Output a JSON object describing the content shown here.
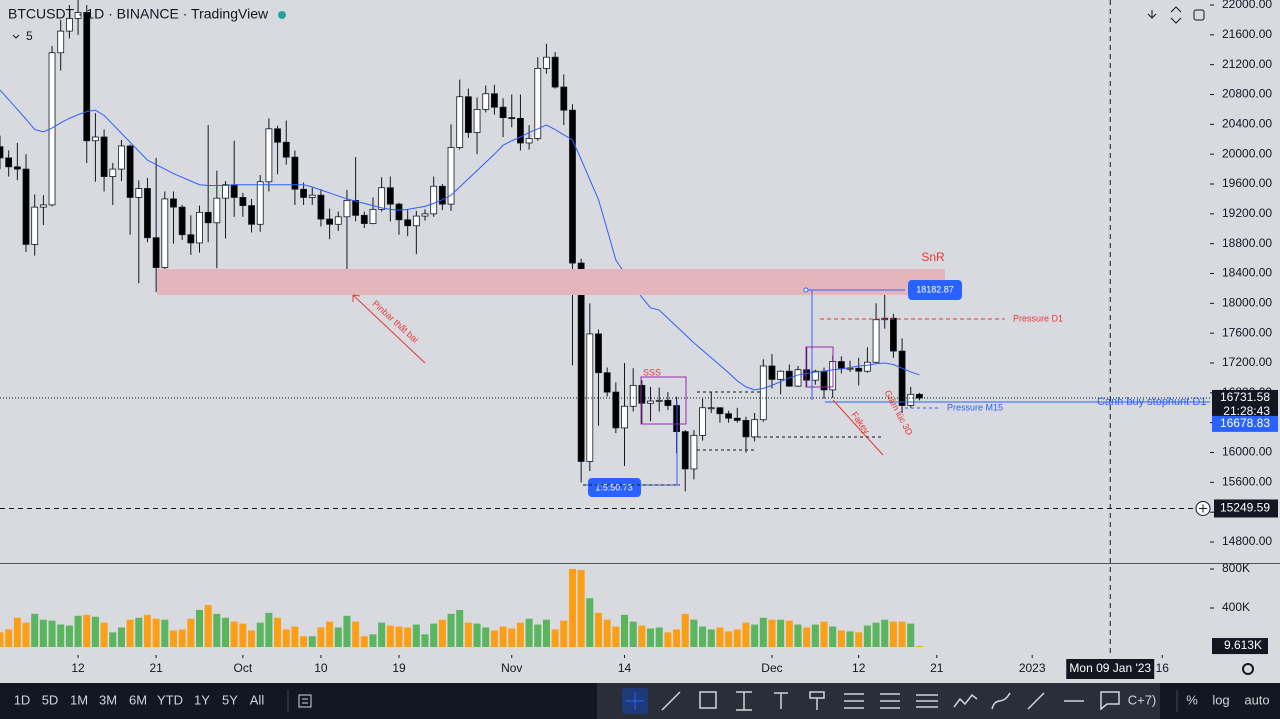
{
  "header": {
    "title": "BTCUSDT · 1D · BINANCE · TradingView",
    "indicator_count": "5"
  },
  "chart_data": {
    "type": "candlestick",
    "open": [
      20100,
      19950,
      19830,
      19800,
      18790,
      19290,
      19320,
      21360,
      21650,
      21820,
      21900,
      20180,
      20230,
      19700,
      19800,
      20110,
      19420,
      19540,
      18880,
      18480,
      19400,
      19290,
      18920,
      18810,
      19220,
      19080,
      19410,
      19590,
      19420,
      19310,
      19060,
      19630,
      20340,
      20160,
      19960,
      19530,
      19420,
      19450,
      19130,
      19060,
      19160,
      19380,
      19180,
      19070,
      19260,
      19550,
      19330,
      19120,
      19040,
      19170,
      19200,
      19570,
      19330,
      20090,
      20770,
      20290,
      20600,
      20810,
      20630,
      20490,
      20480,
      20150,
      20210,
      21150,
      21300,
      20900,
      20590,
      18540,
      15880,
      17590,
      17070,
      16810,
      16330,
      16620,
      16900,
      16660,
      16690,
      16700,
      16630,
      16280,
      15780,
      16230,
      16600,
      16600,
      16520,
      16460,
      16430,
      16210,
      16440,
      17160,
      16980,
      17090,
      16890,
      17110,
      16970,
      17090,
      16840,
      17220,
      17130,
      17130,
      17090,
      17210,
      17780,
      17800,
      17360,
      16630,
      16780
    ],
    "high": [
      20250,
      20050,
      20150,
      20000,
      19460,
      19450,
      21450,
      21800,
      22000,
      22100,
      22000,
      20550,
      20330,
      19880,
      20190,
      20130,
      19650,
      19680,
      19950,
      19500,
      19500,
      19320,
      19180,
      19310,
      20390,
      19780,
      19640,
      20180,
      19480,
      19400,
      19720,
      20480,
      20380,
      20450,
      20050,
      19620,
      19550,
      19530,
      19270,
      19230,
      19520,
      19960,
      19230,
      19420,
      19690,
      19700,
      19350,
      19260,
      19240,
      19260,
      19700,
      19600,
      20400,
      21000,
      20880,
      20760,
      20920,
      20930,
      20750,
      20800,
      20800,
      20390,
      21300,
      21480,
      21370,
      21070,
      20670,
      18600,
      18000,
      17650,
      17140,
      16940,
      17200,
      17130,
      16970,
      16880,
      16870,
      16810,
      16750,
      16300,
      16300,
      16720,
      16810,
      16610,
      16560,
      16600,
      16480,
      16530,
      17250,
      17320,
      17100,
      17180,
      17160,
      17420,
      17110,
      17140,
      17300,
      17290,
      17230,
      17270,
      17410,
      18000,
      18390,
      17860,
      17530,
      16880,
      16800
    ],
    "low": [
      19800,
      19700,
      19650,
      18690,
      18640,
      19050,
      19300,
      21120,
      21550,
      21600,
      19880,
      19630,
      19500,
      19320,
      19640,
      18920,
      18270,
      18820,
      18150,
      18380,
      18800,
      18850,
      18650,
      18680,
      18820,
      18470,
      18870,
      19160,
      19160,
      18950,
      18960,
      19500,
      19730,
      19860,
      19320,
      19320,
      19320,
      19030,
      18860,
      18970,
      18200,
      19100,
      19010,
      19060,
      19230,
      19100,
      18920,
      18900,
      18660,
      19110,
      19160,
      19250,
      19240,
      20060,
      20220,
      20000,
      20560,
      20530,
      20230,
      20360,
      20050,
      20060,
      20180,
      21080,
      20880,
      20390,
      17170,
      15600,
      15750,
      16360,
      16750,
      16260,
      15820,
      16550,
      16380,
      16420,
      16550,
      16570,
      15990,
      15480,
      15640,
      16160,
      16530,
      16400,
      16400,
      16400,
      16000,
      16150,
      16410,
      16860,
      16780,
      16880,
      16880,
      16870,
      16910,
      16720,
      16730,
      17060,
      17080,
      16900,
      17070,
      17200,
      17660,
      17270,
      16530,
      16600,
      16700
    ],
    "close": [
      19950,
      19830,
      19800,
      18790,
      19290,
      19320,
      21360,
      21650,
      21820,
      21900,
      20180,
      20230,
      19700,
      19800,
      20110,
      19420,
      19540,
      18880,
      18480,
      19400,
      19290,
      18920,
      18810,
      19220,
      19080,
      19410,
      19590,
      19420,
      19310,
      19060,
      19630,
      20340,
      20160,
      19960,
      19530,
      19420,
      19450,
      19130,
      19060,
      19160,
      19380,
      19180,
      19070,
      19260,
      19550,
      19330,
      19120,
      19040,
      19170,
      19200,
      19570,
      19330,
      20090,
      20770,
      20290,
      20600,
      20810,
      20630,
      20490,
      20480,
      20150,
      20210,
      21150,
      21300,
      20900,
      20590,
      18540,
      15880,
      17590,
      17070,
      16810,
      16330,
      16620,
      16900,
      16660,
      16690,
      16700,
      16630,
      16280,
      15780,
      16230,
      16600,
      16600,
      16520,
      16460,
      16430,
      16210,
      16440,
      17160,
      16980,
      17090,
      16890,
      17110,
      16970,
      17090,
      16840,
      17220,
      17130,
      17130,
      17090,
      17210,
      17780,
      17800,
      17360,
      16630,
      16780,
      16730
    ],
    "ma": [
      20860,
      20730,
      20600,
      20470,
      20330,
      20300,
      20350,
      20420,
      20480,
      20530,
      20570,
      20590,
      20520,
      20400,
      20280,
      20160,
      20040,
      19920,
      19860,
      19800,
      19740,
      19690,
      19640,
      19590,
      19580,
      19580,
      19580,
      19590,
      19590,
      19590,
      19590,
      19590,
      19590,
      19590,
      19590,
      19590,
      19560,
      19520,
      19480,
      19440,
      19400,
      19370,
      19340,
      19310,
      19280,
      19260,
      19250,
      19260,
      19280,
      19300,
      19340,
      19390,
      19450,
      19560,
      19670,
      19780,
      19890,
      20000,
      20120,
      20180,
      20230,
      20290,
      20340,
      20390,
      20330,
      20260,
      20190,
      19930,
      19660,
      19390,
      18990,
      18580,
      18410,
      18250,
      18080,
      17940,
      17910,
      17800,
      17690,
      17580,
      17470,
      17370,
      17270,
      17170,
      17070,
      16960,
      16880,
      16840,
      16860,
      16900,
      16950,
      17000,
      17040,
      17060,
      17080,
      17090,
      17110,
      17120,
      17140,
      17160,
      17170,
      17190,
      17200,
      17180,
      17130,
      17080,
      17040
    ],
    "ma_color": "#2962ff",
    "up_color": "#ffffff",
    "down_color": "#000000",
    "xlim": [
      0,
      139.5
    ],
    "xticks": [
      {
        "value": 9,
        "label": "12"
      },
      {
        "value": 18,
        "label": "21"
      },
      {
        "value": 28,
        "label": "Oct"
      },
      {
        "value": 37,
        "label": "10"
      },
      {
        "value": 46,
        "label": "19"
      },
      {
        "value": 59,
        "label": "Nov"
      },
      {
        "value": 72,
        "label": "14"
      },
      {
        "value": 89,
        "label": "Dec"
      },
      {
        "value": 99,
        "label": "12"
      },
      {
        "value": 108,
        "label": "21"
      },
      {
        "value": 119,
        "label": "2023"
      },
      {
        "value": 134,
        "label": "16"
      }
    ],
    "ylim": [
      14532,
      22067
    ],
    "yticks": [
      {
        "value": 22000,
        "label": "22000.00"
      },
      {
        "value": 21600,
        "label": "21600.00"
      },
      {
        "value": 21200,
        "label": "21200.00"
      },
      {
        "value": 20800,
        "label": "20800.00"
      },
      {
        "value": 20400,
        "label": "20400.00"
      },
      {
        "value": 20000,
        "label": "20000.00"
      },
      {
        "value": 19600,
        "label": "19600.00"
      },
      {
        "value": 19200,
        "label": "19200.00"
      },
      {
        "value": 18800,
        "label": "18800.00"
      },
      {
        "value": 18400,
        "label": "18400.00"
      },
      {
        "value": 18000,
        "label": "18000.00"
      },
      {
        "value": 17600,
        "label": "17600.00"
      },
      {
        "value": 17200,
        "label": "17200.00"
      },
      {
        "value": 16800,
        "label": "16800.00"
      },
      {
        "value": 16400,
        "label": "16400.00"
      },
      {
        "value": 16000,
        "label": "16000.00"
      },
      {
        "value": 15600,
        "label": "15600.00"
      },
      {
        "value": 15200,
        "label": "15200.00"
      },
      {
        "value": 14800,
        "label": "14800.00"
      }
    ],
    "last_price": 16731.58,
    "countdown": "21:28:43",
    "marker_price": 16678.83,
    "crosshair": {
      "price": 15249.59,
      "x": 128,
      "date_label": "Mon 09 Jan '23"
    },
    "volume": {
      "values": [
        150,
        180,
        300,
        250,
        340,
        280,
        270,
        230,
        220,
        320,
        330,
        310,
        250,
        150,
        200,
        280,
        300,
        330,
        290,
        280,
        170,
        180,
        290,
        380,
        430,
        340,
        300,
        260,
        240,
        170,
        250,
        350,
        300,
        180,
        210,
        110,
        110,
        200,
        260,
        200,
        320,
        260,
        110,
        130,
        250,
        220,
        210,
        200,
        230,
        130,
        240,
        280,
        340,
        380,
        250,
        240,
        200,
        170,
        210,
        190,
        250,
        290,
        230,
        280,
        180,
        270,
        800,
        790,
        500,
        350,
        280,
        210,
        330,
        260,
        220,
        190,
        200,
        150,
        180,
        340,
        280,
        210,
        180,
        200,
        160,
        180,
        250,
        230,
        300,
        280,
        280,
        270,
        230,
        200,
        230,
        260,
        210,
        170,
        160,
        150,
        220,
        250,
        280,
        260,
        260,
        240,
        9.613
      ],
      "ylim": [
        0,
        841
      ],
      "yticks": [
        {
          "value": 400,
          "label": "400K"
        },
        {
          "value": 800,
          "label": "800K"
        }
      ],
      "last_label": "9.613K",
      "up_color": "#4caf50",
      "down_color": "#ff9800"
    },
    "annotations": {
      "snr": "SnR",
      "pinbar": "Pinbar thất bại",
      "pressure_d1": "Pressure D1",
      "pressure_m15": "Pressure M15",
      "stophunt": "Canh buy stophunt D1",
      "box_high": "18182.87",
      "box_low": "1:5:50.73",
      "sss": "SSS",
      "fakey": "Fakey",
      "drop": "Giảm lúc 3D"
    }
  },
  "toolbar": {
    "timeframes": [
      "1D",
      "5D",
      "1M",
      "3M",
      "6M",
      "YTD",
      "1Y",
      "5Y",
      "All"
    ],
    "scale_buttons": [
      "%",
      "log",
      "auto"
    ],
    "timezone": "C+7)"
  }
}
